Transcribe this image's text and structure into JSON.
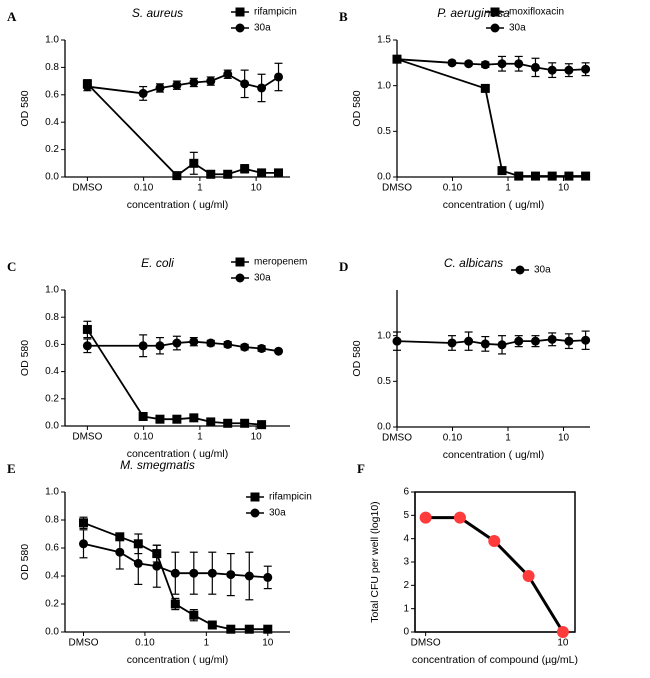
{
  "chart_data": [
    {
      "type": "line",
      "label": "A",
      "title": "S. aureus",
      "xlabel": "concentration ( ug/ml)",
      "ylabel": "OD 580",
      "log_x": true,
      "xlim": [
        0.004,
        40
      ],
      "ylim": [
        0,
        1.0
      ],
      "xticks": [
        {
          "value": 0.01,
          "label": "DMSO"
        },
        {
          "value": 0.1,
          "label": "0.10"
        },
        1,
        10
      ],
      "yticks": [
        {
          "value": 0,
          "label": "0.0"
        },
        0.2,
        0.4,
        0.6,
        0.8,
        {
          "value": 1.0,
          "label": "1.0"
        }
      ],
      "legend": "upper right",
      "series": [
        {
          "name": "rifampicin",
          "marker": "square",
          "color": "#000000",
          "x": [
            0.01,
            0.39,
            0.78,
            1.56,
            3.125,
            6.25,
            12.5,
            25
          ],
          "values": [
            0.68,
            0.01,
            0.1,
            0.02,
            0.02,
            0.06,
            0.03,
            0.03
          ],
          "errors": [
            0.03,
            0.01,
            0.08,
            0.02,
            0.02,
            0.03,
            0.02,
            0.02
          ]
        },
        {
          "name": "30a",
          "marker": "circle",
          "color": "#000000",
          "x": [
            0.01,
            0.098,
            0.195,
            0.39,
            0.78,
            1.56,
            3.125,
            6.25,
            12.5,
            25
          ],
          "values": [
            0.66,
            0.61,
            0.65,
            0.67,
            0.69,
            0.7,
            0.75,
            0.68,
            0.65,
            0.73
          ],
          "errors": [
            0.03,
            0.05,
            0.03,
            0.03,
            0.03,
            0.03,
            0.03,
            0.1,
            0.1,
            0.1
          ]
        }
      ]
    },
    {
      "type": "line",
      "label": "B",
      "title": "P. aeruginosa",
      "xlabel": "concentration ( ug/ml)",
      "ylabel": "OD 580",
      "log_x": true,
      "xlim": [
        0.01,
        30
      ],
      "ylim": [
        0,
        1.5
      ],
      "xticks": [
        {
          "value": 0.01,
          "label": "DMSO"
        },
        {
          "value": 0.1,
          "label": "0.10"
        },
        1,
        10
      ],
      "yticks": [
        {
          "value": 0,
          "label": "0.0"
        },
        0.5,
        {
          "value": 1.0,
          "label": "1.0"
        },
        1.5
      ],
      "legend": "upper right",
      "series": [
        {
          "name": "moxifloxacin",
          "marker": "square",
          "color": "#000000",
          "x": [
            0.01,
            0.39,
            0.78,
            1.56,
            3.125,
            6.25,
            12.5,
            25
          ],
          "values": [
            1.29,
            0.97,
            0.07,
            0.01,
            0.01,
            0.01,
            0.01,
            0.01
          ],
          "errors": [
            0.03,
            0.02,
            0.02,
            0.01,
            0.01,
            0.01,
            0.01,
            0.01
          ]
        },
        {
          "name": "30a",
          "marker": "circle",
          "color": "#000000",
          "x": [
            0.01,
            0.098,
            0.195,
            0.39,
            0.78,
            1.56,
            3.125,
            6.25,
            12.5,
            25
          ],
          "values": [
            1.29,
            1.25,
            1.24,
            1.23,
            1.24,
            1.24,
            1.2,
            1.17,
            1.17,
            1.18
          ],
          "errors": [
            0.03,
            0.02,
            0.02,
            0.03,
            0.08,
            0.08,
            0.1,
            0.08,
            0.07,
            0.07
          ]
        }
      ]
    },
    {
      "type": "line",
      "label": "C",
      "title": "E. coli",
      "xlabel": "concentration ( ug/ml)",
      "ylabel": "OD 580",
      "log_x": true,
      "xlim": [
        0.004,
        40
      ],
      "ylim": [
        0,
        1.0
      ],
      "xticks": [
        {
          "value": 0.01,
          "label": "DMSO"
        },
        {
          "value": 0.1,
          "label": "0.10"
        },
        1,
        10
      ],
      "yticks": [
        {
          "value": 0,
          "label": "0.0"
        },
        0.2,
        0.4,
        0.6,
        0.8,
        {
          "value": 1.0,
          "label": "1.0"
        }
      ],
      "legend": "upper right",
      "series": [
        {
          "name": "meropenem",
          "marker": "square",
          "color": "#000000",
          "x": [
            0.01,
            0.098,
            0.195,
            0.39,
            0.78,
            1.56,
            3.125,
            6.25,
            12.5
          ],
          "values": [
            0.71,
            0.07,
            0.05,
            0.05,
            0.06,
            0.03,
            0.02,
            0.02,
            0.01
          ],
          "errors": [
            0.06,
            0.02,
            0.02,
            0.02,
            0.02,
            0.01,
            0.01,
            0.01,
            0.01
          ]
        },
        {
          "name": "30a",
          "marker": "circle",
          "color": "#000000",
          "x": [
            0.01,
            0.098,
            0.195,
            0.39,
            0.78,
            1.56,
            3.125,
            6.25,
            12.5,
            25
          ],
          "values": [
            0.59,
            0.59,
            0.59,
            0.61,
            0.62,
            0.61,
            0.6,
            0.58,
            0.57,
            0.55
          ],
          "errors": [
            0.05,
            0.08,
            0.06,
            0.05,
            0.03,
            0.02,
            0.02,
            0.02,
            0.02,
            0.01
          ]
        }
      ]
    },
    {
      "type": "line",
      "label": "D",
      "title": "C. albicans",
      "xlabel": "concentration ( ug/ml)",
      "ylabel": "OD 580",
      "log_x": true,
      "xlim": [
        0.01,
        30
      ],
      "ylim": [
        0,
        1.5
      ],
      "xticks": [
        {
          "value": 0.01,
          "label": "DMSO"
        },
        {
          "value": 0.1,
          "label": "0.10"
        },
        1,
        10
      ],
      "yticks": [
        {
          "value": 0,
          "label": "0.0"
        },
        0.5,
        {
          "value": 1.0,
          "label": "1.0"
        }
      ],
      "legend": "upper right",
      "series": [
        {
          "name": "30a",
          "marker": "circle",
          "color": "#000000",
          "x": [
            0.01,
            0.098,
            0.195,
            0.39,
            0.78,
            1.56,
            3.125,
            6.25,
            12.5,
            25
          ],
          "values": [
            0.94,
            0.92,
            0.94,
            0.91,
            0.9,
            0.94,
            0.94,
            0.96,
            0.94,
            0.95
          ],
          "errors": [
            0.1,
            0.08,
            0.1,
            0.08,
            0.1,
            0.06,
            0.06,
            0.07,
            0.08,
            0.1
          ]
        }
      ]
    },
    {
      "type": "line",
      "label": "E",
      "title": "M. smegmatis",
      "xlabel": "concentration ( ug/ml)",
      "ylabel": "OD 580",
      "log_x": true,
      "xlim": [
        0.005,
        23
      ],
      "ylim": [
        0,
        1.0
      ],
      "xticks": [
        {
          "value": 0.01,
          "label": "DMSO"
        },
        {
          "value": 0.1,
          "label": "0.10"
        },
        1,
        10
      ],
      "yticks": [
        {
          "value": 0,
          "label": "0.0"
        },
        0.2,
        0.4,
        0.6,
        0.8,
        {
          "value": 1.0,
          "label": "1.0"
        }
      ],
      "legend": "upper right",
      "series": [
        {
          "name": "rifampicin",
          "marker": "square",
          "color": "#000000",
          "x": [
            0.01,
            0.039,
            0.078,
            0.156,
            0.3125,
            0.625,
            1.25,
            2.5,
            5,
            10
          ],
          "values": [
            0.78,
            0.68,
            0.63,
            0.56,
            0.2,
            0.12,
            0.05,
            0.02,
            0.02,
            0.02
          ],
          "errors": [
            0.04,
            0.02,
            0.07,
            0.06,
            0.04,
            0.04,
            0.02,
            0.01,
            0.01,
            0.01
          ]
        },
        {
          "name": "30a",
          "marker": "circle",
          "color": "#000000",
          "x": [
            0.01,
            0.039,
            0.078,
            0.156,
            0.3125,
            0.625,
            1.25,
            2.5,
            5,
            10
          ],
          "values": [
            0.63,
            0.57,
            0.49,
            0.47,
            0.42,
            0.42,
            0.42,
            0.41,
            0.4,
            0.39
          ],
          "errors": [
            0.1,
            0.12,
            0.15,
            0.15,
            0.15,
            0.15,
            0.15,
            0.15,
            0.17,
            0.08
          ]
        }
      ]
    },
    {
      "type": "line",
      "label": "F",
      "xlabel": "concentration of compound (µg/mL)",
      "ylabel": "Total CFU per well (log10)",
      "log_x": true,
      "frame": true,
      "xlim": [
        0.07,
        15
      ],
      "ylim": [
        0,
        6
      ],
      "xticks": [
        {
          "value": 0.1,
          "label": "DMSO"
        },
        10
      ],
      "yticks": [
        0,
        1,
        2,
        3,
        4,
        5,
        6
      ],
      "series": [
        {
          "marker": "circle",
          "color": "#000000",
          "marker_color": "#ff3b3b",
          "x": [
            0.1,
            0.316,
            1,
            3.16,
            10
          ],
          "values": [
            4.9,
            4.9,
            3.9,
            2.4,
            0
          ]
        }
      ]
    }
  ]
}
